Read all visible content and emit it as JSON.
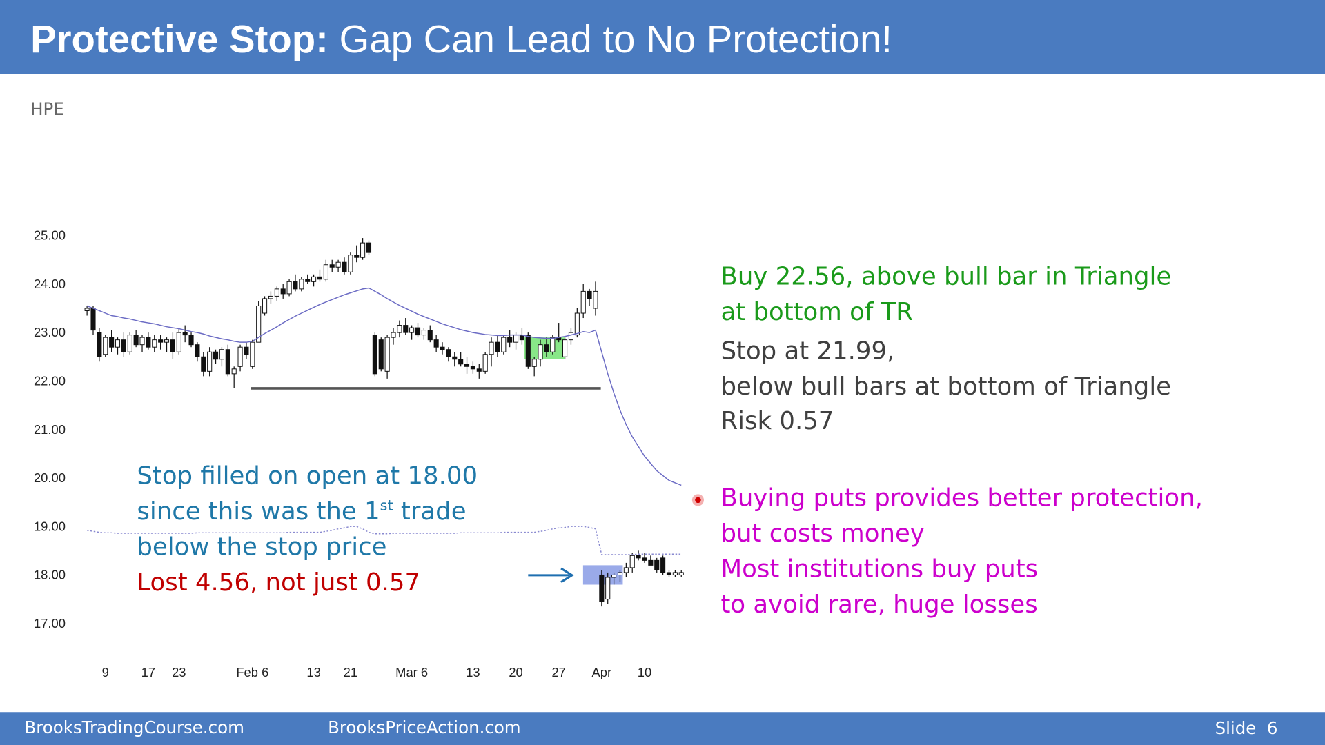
{
  "header": {
    "title_bold": "Protective Stop:",
    "title_rest": " Gap Can Lead to No Protection!"
  },
  "ticker": "HPE",
  "chart_data": {
    "type": "candlestick",
    "categories": [
      null,
      null,
      null,
      "9",
      null,
      null,
      null,
      null,
      null,
      null,
      "17",
      null,
      null,
      null,
      null,
      "23",
      null,
      null,
      null,
      null,
      null,
      null,
      null,
      null,
      null,
      null,
      null,
      "Feb 6",
      null,
      null,
      null,
      null,
      null,
      null,
      null,
      null,
      null,
      "13",
      null,
      null,
      null,
      null,
      null,
      "21",
      null,
      null,
      null,
      null,
      null,
      null,
      null,
      null,
      null,
      "Mar 6",
      null,
      null,
      null,
      null,
      null,
      null,
      null,
      null,
      null,
      "13",
      null,
      null,
      null,
      null,
      null,
      null,
      "20",
      null,
      null,
      null,
      null,
      null,
      null,
      "27",
      null,
      null,
      null,
      null,
      null,
      null,
      "Apr",
      null,
      null,
      null,
      null,
      null,
      null,
      "10",
      null,
      null,
      null,
      null,
      null,
      null
    ],
    "open": [
      23.45,
      23.5,
      23.0,
      22.55,
      22.9,
      22.7,
      22.85,
      22.6,
      22.95,
      22.75,
      22.9,
      22.7,
      22.85,
      22.8,
      22.85,
      22.6,
      23.0,
      22.95,
      22.75,
      22.5,
      22.2,
      22.6,
      22.45,
      22.65,
      22.15,
      22.3,
      22.7,
      22.3,
      22.8,
      23.4,
      23.7,
      23.75,
      23.9,
      23.8,
      24.05,
      23.9,
      24.1,
      24.05,
      24.15,
      24.1,
      24.4,
      24.35,
      24.45,
      24.25,
      24.6,
      24.55,
      24.85,
      22.95,
      22.85,
      22.2,
      22.9,
      23.0,
      23.15,
      23.0,
      23.1,
      22.95,
      23.05,
      22.85,
      22.7,
      22.65,
      22.5,
      22.45,
      22.35,
      22.3,
      22.25,
      22.2,
      22.55,
      22.8,
      22.6,
      22.9,
      22.8,
      22.95,
      22.95,
      22.3,
      22.45,
      22.75,
      22.6,
      22.9,
      22.5,
      22.85,
      22.95,
      23.4,
      23.85,
      23.5,
      18.0,
      17.5,
      17.95,
      18.0,
      18.05,
      18.15,
      18.4,
      18.35,
      18.3,
      18.3,
      18.35,
      18.05,
      18.0,
      18.0
    ],
    "high": [
      23.55,
      23.55,
      23.1,
      22.95,
      23.05,
      22.9,
      23.0,
      23.0,
      23.05,
      22.95,
      23.0,
      22.95,
      22.95,
      22.9,
      23.0,
      23.1,
      23.15,
      23.0,
      22.8,
      22.6,
      22.7,
      22.65,
      22.7,
      22.75,
      22.3,
      22.75,
      22.8,
      22.85,
      23.65,
      23.75,
      23.85,
      23.95,
      24.0,
      24.1,
      24.2,
      24.15,
      24.2,
      24.2,
      24.3,
      24.5,
      24.5,
      24.5,
      24.55,
      24.65,
      24.8,
      24.95,
      24.9,
      23.0,
      22.9,
      22.95,
      23.1,
      23.25,
      23.3,
      23.15,
      23.2,
      23.1,
      23.15,
      22.95,
      22.8,
      22.7,
      22.6,
      22.6,
      22.5,
      22.4,
      22.35,
      22.6,
      22.9,
      22.95,
      22.95,
      23.05,
      23.0,
      23.1,
      23.0,
      22.5,
      22.85,
      22.9,
      22.95,
      23.2,
      22.9,
      23.1,
      23.5,
      24.0,
      23.9,
      24.05,
      18.1,
      18.05,
      18.05,
      18.1,
      18.25,
      18.45,
      18.5,
      18.45,
      18.4,
      18.35,
      18.4,
      18.1,
      18.1,
      18.1
    ],
    "low": [
      23.35,
      22.95,
      22.4,
      22.5,
      22.6,
      22.55,
      22.5,
      22.55,
      22.7,
      22.6,
      22.65,
      22.6,
      22.65,
      22.6,
      22.45,
      22.55,
      22.8,
      22.7,
      22.4,
      22.1,
      22.1,
      22.35,
      22.3,
      22.1,
      21.85,
      22.2,
      22.45,
      22.25,
      22.8,
      23.35,
      23.6,
      23.65,
      23.7,
      23.75,
      23.85,
      23.85,
      24.0,
      23.95,
      24.05,
      24.05,
      24.25,
      24.25,
      24.2,
      24.2,
      24.45,
      24.5,
      24.6,
      22.1,
      22.2,
      22.05,
      22.75,
      22.9,
      22.95,
      22.85,
      22.9,
      22.85,
      22.8,
      22.6,
      22.55,
      22.4,
      22.3,
      22.3,
      22.15,
      22.15,
      22.05,
      22.15,
      22.3,
      22.5,
      22.55,
      22.7,
      22.65,
      22.75,
      22.25,
      22.1,
      22.3,
      22.5,
      22.55,
      22.8,
      22.45,
      22.75,
      22.9,
      23.3,
      23.55,
      23.35,
      17.35,
      17.4,
      17.8,
      17.85,
      17.95,
      18.05,
      18.3,
      18.25,
      18.2,
      18.05,
      18.0,
      17.95,
      17.95,
      17.95
    ],
    "close": [
      23.5,
      23.05,
      22.5,
      22.9,
      22.7,
      22.85,
      22.6,
      22.95,
      22.75,
      22.9,
      22.7,
      22.85,
      22.8,
      22.85,
      22.6,
      23.0,
      22.95,
      22.75,
      22.5,
      22.2,
      22.6,
      22.45,
      22.65,
      22.15,
      22.25,
      22.7,
      22.55,
      22.8,
      23.55,
      23.7,
      23.75,
      23.9,
      23.8,
      24.05,
      23.9,
      24.1,
      24.05,
      24.15,
      24.1,
      24.4,
      24.35,
      24.45,
      24.25,
      24.6,
      24.55,
      24.85,
      24.65,
      22.15,
      22.25,
      22.9,
      23.0,
      23.15,
      23.0,
      23.1,
      22.95,
      23.05,
      22.85,
      22.7,
      22.65,
      22.5,
      22.45,
      22.35,
      22.3,
      22.25,
      22.2,
      22.55,
      22.8,
      22.6,
      22.9,
      22.8,
      22.95,
      22.85,
      22.3,
      22.45,
      22.75,
      22.6,
      22.9,
      22.85,
      22.85,
      23.0,
      23.4,
      23.85,
      23.7,
      23.85,
      17.45,
      17.95,
      18.0,
      18.05,
      18.15,
      18.4,
      18.35,
      18.3,
      18.2,
      18.1,
      18.05,
      18.0,
      18.05,
      18.05
    ],
    "overlays": [
      {
        "color": "#6b6bc4",
        "dashed": false,
        "values": [
          23.55,
          23.5,
          23.45,
          23.4,
          23.35,
          23.33,
          23.3,
          23.28,
          23.25,
          23.22,
          23.2,
          23.18,
          23.15,
          23.12,
          23.1,
          23.08,
          23.05,
          23.02,
          23.0,
          22.97,
          22.93,
          22.9,
          22.87,
          22.85,
          22.82,
          22.8,
          22.8,
          22.82,
          22.9,
          22.98,
          23.05,
          23.12,
          23.2,
          23.27,
          23.34,
          23.4,
          23.46,
          23.52,
          23.58,
          23.63,
          23.68,
          23.73,
          23.78,
          23.82,
          23.86,
          23.9,
          23.92,
          23.85,
          23.78,
          23.7,
          23.63,
          23.56,
          23.5,
          23.44,
          23.38,
          23.33,
          23.28,
          23.23,
          23.18,
          23.14,
          23.1,
          23.06,
          23.03,
          23.0,
          22.98,
          22.96,
          22.95,
          22.94,
          22.94,
          22.95,
          22.95,
          22.95,
          22.92,
          22.9,
          22.89,
          22.88,
          22.88,
          22.9,
          22.92,
          22.95,
          22.98,
          23.02,
          23.0,
          23.05,
          22.6,
          22.15,
          21.75,
          21.4,
          21.1,
          20.85,
          20.65,
          20.45,
          20.3,
          20.15,
          20.05,
          19.95,
          19.9,
          19.85
        ]
      },
      {
        "color": "#8a8ad0",
        "dashed": true,
        "values": [
          18.92,
          18.9,
          18.88,
          18.87,
          18.87,
          18.86,
          18.86,
          18.86,
          18.86,
          18.86,
          18.86,
          18.86,
          18.86,
          18.86,
          18.86,
          18.86,
          18.86,
          18.86,
          18.87,
          18.87,
          18.87,
          18.87,
          18.87,
          18.87,
          18.87,
          18.87,
          18.87,
          18.87,
          18.87,
          18.87,
          18.87,
          18.87,
          18.87,
          18.88,
          18.88,
          18.88,
          18.88,
          18.88,
          18.88,
          18.9,
          18.92,
          18.95,
          18.97,
          19.0,
          19.0,
          18.95,
          18.88,
          18.85,
          18.85,
          18.85,
          18.86,
          18.86,
          18.86,
          18.86,
          18.86,
          18.86,
          18.86,
          18.86,
          18.86,
          18.86,
          18.86,
          18.87,
          18.87,
          18.87,
          18.87,
          18.87,
          18.87,
          18.87,
          18.88,
          18.88,
          18.88,
          18.88,
          18.88,
          18.88,
          18.9,
          18.92,
          18.95,
          18.97,
          18.98,
          19.0,
          19.0,
          19.0,
          18.98,
          18.95,
          18.42,
          18.42,
          18.42,
          18.42,
          18.42,
          18.42,
          18.43,
          18.43,
          18.43,
          18.43,
          18.43,
          18.43,
          18.43,
          18.43
        ]
      }
    ],
    "hline": {
      "value": 21.85,
      "color": "#555555"
    },
    "zones": [
      {
        "low": 22.45,
        "high": 22.9,
        "color": "#55dd55"
      },
      {
        "low": 17.8,
        "high": 18.2,
        "color": "#6f86e0"
      }
    ],
    "ylim": [
      16.6,
      25.4
    ],
    "yticks": [
      {
        "value": 17,
        "label": "17.00"
      },
      {
        "value": 18,
        "label": "18.00"
      },
      {
        "value": 19,
        "label": "19.00"
      },
      {
        "value": 20,
        "label": "20.00"
      },
      {
        "value": 21,
        "label": "21.00"
      },
      {
        "value": 22,
        "label": "22.00"
      },
      {
        "value": 23,
        "label": "23.00"
      },
      {
        "value": 24,
        "label": "24.00"
      },
      {
        "value": 25,
        "label": "25.00"
      }
    ],
    "grid": false
  },
  "notes_right": {
    "buy": [
      "Buy 22.56, above bull bar in Triangle",
      "at bottom of TR"
    ],
    "stop": [
      "Stop at 21.99,",
      "below bull bars at bottom of Triangle",
      "Risk 0.57"
    ],
    "puts": [
      "Buying puts provides better protection,",
      "but costs money",
      "Most institutions buy puts",
      "to avoid rare, huge losses"
    ]
  },
  "notes_left": {
    "line1": "Stop filled on open at 18.00",
    "line2": [
      "since this was the 1",
      "st",
      " trade"
    ],
    "line3": "below the stop price",
    "loss": "Lost 4.56, not just 0.57"
  },
  "footer": {
    "left": "BrooksTradingCourse.com",
    "middle": "BrooksPriceAction.com",
    "slide": "Slide  6"
  }
}
